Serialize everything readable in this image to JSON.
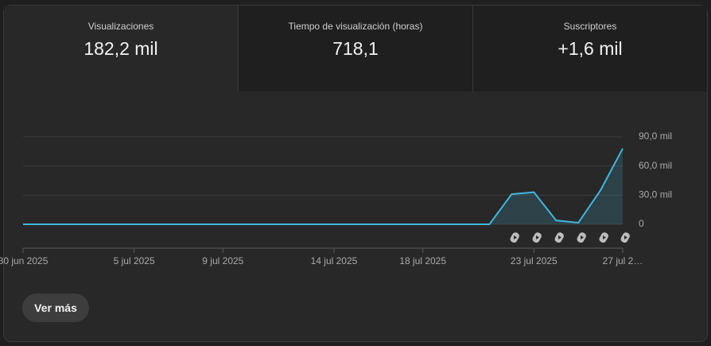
{
  "tabs": [
    {
      "label": "Visualizaciones",
      "value": "182,2 mil"
    },
    {
      "label": "Tiempo de visualización (horas)",
      "value": "718,1"
    },
    {
      "label": "Suscriptores",
      "value": "+1,6 mil"
    }
  ],
  "chart_data": {
    "type": "line",
    "categories": [
      "30 jun 2025",
      null,
      null,
      null,
      null,
      "5 jul 2025",
      null,
      null,
      null,
      "9 jul 2025",
      null,
      null,
      null,
      null,
      "14 jul 2025",
      null,
      null,
      null,
      "18 jul 2025",
      null,
      null,
      null,
      null,
      "23 jul 2025",
      null,
      null,
      null,
      "27 jul 2…"
    ],
    "values": [
      0,
      0,
      0,
      0,
      0,
      0,
      0,
      0,
      0,
      0,
      0,
      0,
      0,
      0,
      0,
      0,
      0,
      0,
      0,
      0,
      0,
      0,
      31000,
      33000,
      4000,
      1600,
      35000,
      78000
    ],
    "color": "#41b6db",
    "area": true,
    "ylim": [
      0,
      90000
    ],
    "yticks": [
      0,
      {
        "value": 30000,
        "label": "30,0 mil"
      },
      {
        "value": 60000,
        "label": "60,0 mil"
      },
      {
        "value": 90000,
        "label": "90,0 mil"
      }
    ],
    "grid": true
  },
  "button": "Ver más"
}
